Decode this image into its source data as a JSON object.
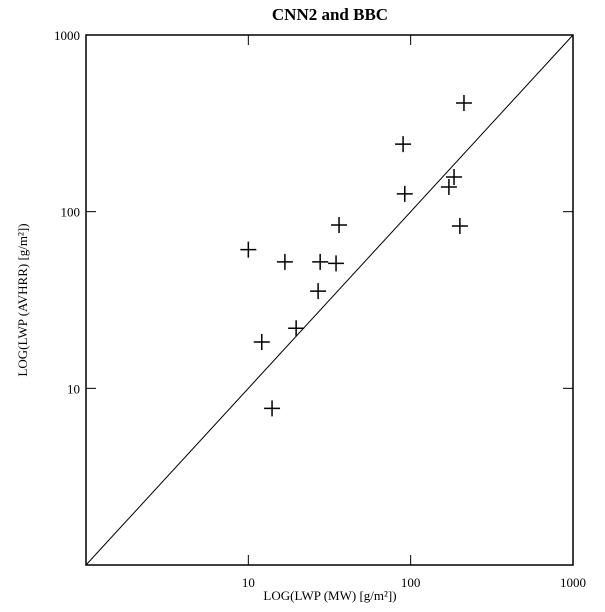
{
  "chart_data": {
    "type": "scatter",
    "title": "CNN2 and BBC",
    "x_label": "LOG(LWP (MW) [g/m²])",
    "y_label": "LOG(LWP (AVHRR) [g/m²])",
    "xscale": "log",
    "yscale": "log",
    "xlim": [
      1,
      1000
    ],
    "ylim": [
      1,
      1000
    ],
    "xticks": [
      10,
      100,
      1000
    ],
    "yticks": [
      10,
      100,
      1000
    ],
    "color": "#000000",
    "x": [
      10,
      12.1,
      14,
      16.8,
      19.7,
      27.7,
      26.9,
      34.7,
      36.2,
      89.8,
      92,
      172,
      185,
      201,
      213
    ],
    "values": [
      61,
      18.3,
      7.7,
      52,
      21.9,
      52,
      35.5,
      51,
      84,
      241,
      126,
      138,
      157,
      83,
      412
    ]
  }
}
